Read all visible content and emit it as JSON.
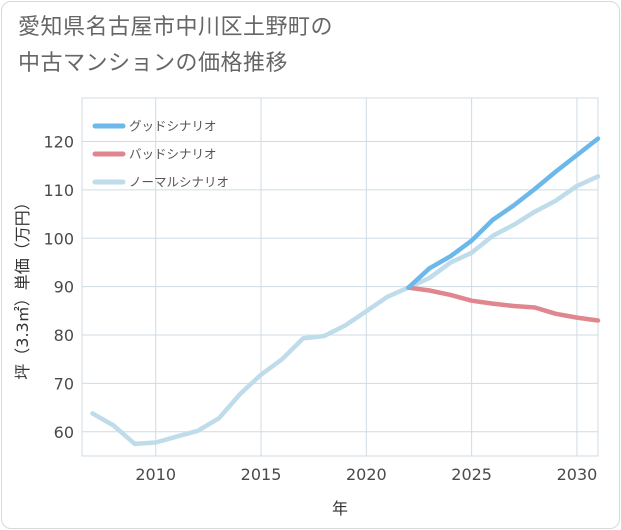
{
  "title_lines": [
    "愛知県名古屋市中川区土野町の",
    "中古マンションの価格推移"
  ],
  "chart_data": {
    "type": "line",
    "xlabel": "年",
    "ylabel": "坪（3.3㎡）単価（万円）",
    "xlim": [
      2006.5,
      2031
    ],
    "ylim": [
      55,
      129
    ],
    "xticks": [
      2010,
      2015,
      2020,
      2025,
      2030
    ],
    "yticks": [
      60,
      70,
      80,
      90,
      100,
      110,
      120
    ],
    "grid": true,
    "legend_position": "top-left",
    "series": [
      {
        "name": "グッドシナリオ",
        "color": "#6cb8ea",
        "x": [
          2022,
          2023,
          2024,
          2025,
          2026,
          2027,
          2028,
          2029,
          2030,
          2031
        ],
        "values": [
          89.8,
          93.8,
          96.3,
          99.5,
          103.8,
          106.8,
          110.2,
          113.8,
          117.2,
          120.6
        ]
      },
      {
        "name": "バッドシナリオ",
        "color": "#e0868f",
        "x": [
          2022,
          2023,
          2024,
          2025,
          2026,
          2027,
          2028,
          2029,
          2030,
          2031
        ],
        "values": [
          89.8,
          89.2,
          88.3,
          87.1,
          86.5,
          86.0,
          85.7,
          84.4,
          83.6,
          83.0
        ]
      },
      {
        "name": "ノーマルシナリオ",
        "color": "#bfdcea",
        "x": [
          2007,
          2008,
          2009,
          2010,
          2011,
          2012,
          2013,
          2014,
          2015,
          2016,
          2017,
          2018,
          2019,
          2020,
          2021,
          2022,
          2023,
          2024,
          2025,
          2026,
          2027,
          2028,
          2029,
          2030,
          2031
        ],
        "values": [
          63.8,
          61.3,
          57.5,
          57.8,
          59.0,
          60.2,
          62.8,
          67.8,
          71.8,
          75.0,
          79.3,
          79.8,
          82.0,
          84.9,
          87.9,
          89.8,
          91.8,
          95.0,
          97.0,
          100.5,
          102.8,
          105.5,
          107.8,
          110.8,
          112.8
        ]
      }
    ]
  }
}
